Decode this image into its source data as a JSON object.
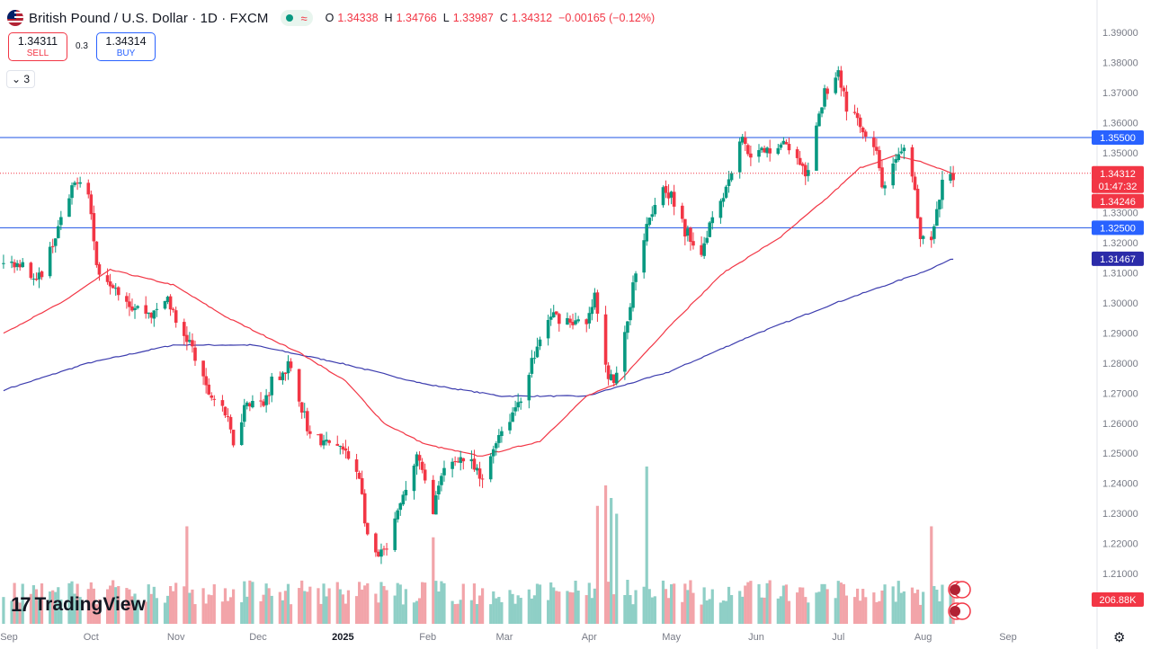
{
  "header": {
    "symbol_title": "British Pound / U.S. Dollar · 1D · FXCM",
    "open_label": "O",
    "open": "1.34338",
    "high_label": "H",
    "high": "1.34766",
    "low_label": "L",
    "low": "1.33987",
    "close_label": "C",
    "close": "1.34312",
    "change": "−0.00165 (−0.12%)",
    "wave_glyph": "≈"
  },
  "trade": {
    "sell_price": "1.34311",
    "sell_label": "SELL",
    "spread": "0.3",
    "buy_price": "1.34314",
    "buy_label": "BUY"
  },
  "indicator_toggle": "⌄ 3",
  "logo_text": "TradingView",
  "logo_mark": "17",
  "settings_icon": "⚙",
  "colors": {
    "bull": "#089981",
    "bear": "#f23645",
    "ma50": "#f23645",
    "ma200": "#3c3cae",
    "level_line": "#2962ff",
    "tag_blue": "#2962ff",
    "tag_red": "#f23645",
    "tag_navy": "#2b2ba9",
    "volume_bull": "#8fcfc6",
    "volume_bear": "#f2a4a9"
  },
  "chart_data": {
    "type": "candlestick",
    "y_axis_ticks": [
      "1.39000",
      "1.38000",
      "1.37000",
      "1.36000",
      "1.35000",
      "1.34000",
      "1.33000",
      "1.32000",
      "1.31000",
      "1.30000",
      "1.29000",
      "1.28000",
      "1.27000",
      "1.26000",
      "1.25000",
      "1.24000",
      "1.23000",
      "1.22000",
      "1.21000"
    ],
    "ylim": [
      1.2035,
      1.3952
    ],
    "x_axis_ticks": [
      "Sep",
      "Oct",
      "Nov",
      "Dec",
      "2025",
      "Feb",
      "Mar",
      "Apr",
      "May",
      "Jun",
      "Jul",
      "Aug",
      "Sep"
    ],
    "horizontal_levels": [
      1.355,
      1.325
    ],
    "current_price": 1.34312,
    "price_tags": [
      {
        "label": "1.35500",
        "value": 1.355,
        "color": "blue"
      },
      {
        "label": "1.34312",
        "value": 1.34312,
        "color": "red"
      },
      {
        "label": "01:47:32",
        "value": 1.34,
        "color": "red"
      },
      {
        "label": "1.34246",
        "value": 1.3382,
        "color": "red"
      },
      {
        "label": "1.32500",
        "value": 1.325,
        "color": "blue"
      },
      {
        "label": "1.31467",
        "value": 1.31467,
        "color": "navy"
      }
    ],
    "volume_tag": "206.88K",
    "price_path_keypoints": [
      [
        "2024-08-30",
        1.313
      ],
      [
        "2024-09-06",
        1.314
      ],
      [
        "2024-09-11",
        1.306
      ],
      [
        "2024-09-20",
        1.327
      ],
      [
        "2024-09-26",
        1.342
      ],
      [
        "2024-09-30",
        1.338
      ],
      [
        "2024-10-03",
        1.312
      ],
      [
        "2024-10-10",
        1.306
      ],
      [
        "2024-10-16",
        1.299
      ],
      [
        "2024-10-24",
        1.296
      ],
      [
        "2024-10-29",
        1.302
      ],
      [
        "2024-11-01",
        1.293
      ],
      [
        "2024-11-06",
        1.287
      ],
      [
        "2024-11-12",
        1.271
      ],
      [
        "2024-11-18",
        1.266
      ],
      [
        "2024-11-22",
        1.254
      ],
      [
        "2024-11-27",
        1.268
      ],
      [
        "2024-12-03",
        1.266
      ],
      [
        "2024-12-06",
        1.274
      ],
      [
        "2024-12-12",
        1.279
      ],
      [
        "2024-12-16",
        1.269
      ],
      [
        "2024-12-20",
        1.256
      ],
      [
        "2024-12-26",
        1.253
      ],
      [
        "2024-12-31",
        1.252
      ],
      [
        "2025-01-07",
        1.243
      ],
      [
        "2025-01-10",
        1.221
      ],
      [
        "2025-01-14",
        1.215
      ],
      [
        "2025-01-17",
        1.218
      ],
      [
        "2025-01-24",
        1.238
      ],
      [
        "2025-01-28",
        1.249
      ],
      [
        "2025-01-31",
        1.24
      ],
      [
        "2025-02-03",
        1.232
      ],
      [
        "2025-02-07",
        1.244
      ],
      [
        "2025-02-12",
        1.249
      ],
      [
        "2025-02-17",
        1.246
      ],
      [
        "2025-02-21",
        1.24
      ],
      [
        "2025-02-26",
        1.255
      ],
      [
        "2025-03-03",
        1.262
      ],
      [
        "2025-03-07",
        1.269
      ],
      [
        "2025-03-12",
        1.283
      ],
      [
        "2025-03-18",
        1.296
      ],
      [
        "2025-03-26",
        1.294
      ],
      [
        "2025-03-31",
        1.292
      ],
      [
        "2025-04-03",
        1.302
      ],
      [
        "2025-04-07",
        1.278
      ],
      [
        "2025-04-10",
        1.273
      ],
      [
        "2025-04-14",
        1.289
      ],
      [
        "2025-04-18",
        1.311
      ],
      [
        "2025-04-22",
        1.327
      ],
      [
        "2025-04-28",
        1.34
      ],
      [
        "2025-05-01",
        1.335
      ],
      [
        "2025-05-06",
        1.324
      ],
      [
        "2025-05-12",
        1.317
      ],
      [
        "2025-05-15",
        1.327
      ],
      [
        "2025-05-22",
        1.341
      ],
      [
        "2025-05-26",
        1.355
      ],
      [
        "2025-05-30",
        1.35
      ],
      [
        "2025-06-04",
        1.35
      ],
      [
        "2025-06-09",
        1.353
      ],
      [
        "2025-06-13",
        1.352
      ],
      [
        "2025-06-17",
        1.345
      ],
      [
        "2025-06-20",
        1.342
      ],
      [
        "2025-06-24",
        1.362
      ],
      [
        "2025-06-26",
        1.37
      ],
      [
        "2025-07-01",
        1.377
      ],
      [
        "2025-07-04",
        1.365
      ],
      [
        "2025-07-08",
        1.36
      ],
      [
        "2025-07-11",
        1.354
      ],
      [
        "2025-07-15",
        1.349
      ],
      [
        "2025-07-17",
        1.339
      ],
      [
        "2025-07-22",
        1.346
      ],
      [
        "2025-07-25",
        1.35
      ],
      [
        "2025-07-28",
        1.342
      ],
      [
        "2025-07-31",
        1.323
      ],
      [
        "2025-08-04",
        1.32
      ],
      [
        "2025-08-06",
        1.329
      ],
      [
        "2025-08-08",
        1.34
      ],
      [
        "2025-08-12",
        1.343
      ]
    ],
    "ma50_keypoints": [
      [
        "2024-08-30",
        1.29
      ],
      [
        "2024-09-20",
        1.3
      ],
      [
        "2024-10-08",
        1.311
      ],
      [
        "2024-10-31",
        1.306
      ],
      [
        "2024-11-20",
        1.295
      ],
      [
        "2024-12-17",
        1.283
      ],
      [
        "2025-01-02",
        1.274
      ],
      [
        "2025-01-16",
        1.26
      ],
      [
        "2025-01-31",
        1.253
      ],
      [
        "2025-02-20",
        1.249
      ],
      [
        "2025-03-14",
        1.254
      ],
      [
        "2025-03-31",
        1.269
      ],
      [
        "2025-04-11",
        1.273
      ],
      [
        "2025-04-30",
        1.292
      ],
      [
        "2025-05-20",
        1.31
      ],
      [
        "2025-06-10",
        1.322
      ],
      [
        "2025-06-27",
        1.335
      ],
      [
        "2025-07-09",
        1.345
      ],
      [
        "2025-07-22",
        1.349
      ],
      [
        "2025-07-31",
        1.347
      ],
      [
        "2025-08-12",
        1.343
      ]
    ],
    "ma200_keypoints": [
      [
        "2024-08-30",
        1.271
      ],
      [
        "2024-09-30",
        1.28
      ],
      [
        "2024-10-31",
        1.286
      ],
      [
        "2024-11-29",
        1.286
      ],
      [
        "2024-12-31",
        1.28
      ],
      [
        "2025-01-31",
        1.273
      ],
      [
        "2025-02-28",
        1.269
      ],
      [
        "2025-03-31",
        1.269
      ],
      [
        "2025-04-30",
        1.277
      ],
      [
        "2025-05-30",
        1.289
      ],
      [
        "2025-06-30",
        1.3
      ],
      [
        "2025-07-31",
        1.31
      ],
      [
        "2025-08-12",
        1.3147
      ]
    ],
    "volume_range": [
      0,
      1
    ],
    "volume_spikes": [
      [
        "2024-11-05",
        0.62
      ],
      [
        "2025-02-03",
        0.55
      ],
      [
        "2025-04-04",
        0.75
      ],
      [
        "2025-04-07",
        0.88
      ],
      [
        "2025-04-09",
        0.8
      ],
      [
        "2025-04-11",
        0.7
      ],
      [
        "2025-04-22",
        1.0
      ],
      [
        "2025-08-04",
        0.62
      ]
    ]
  }
}
